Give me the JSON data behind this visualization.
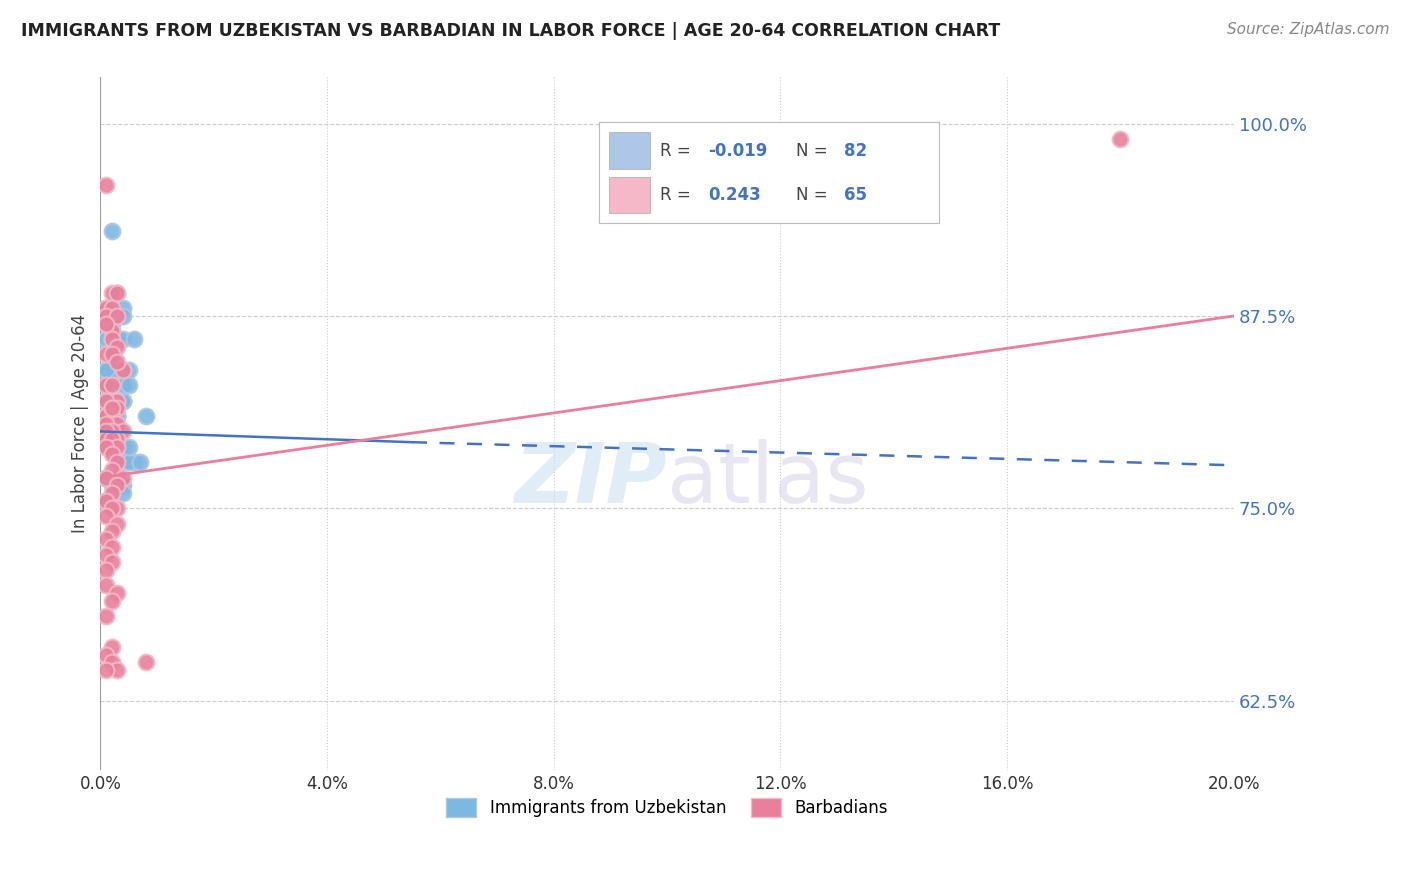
{
  "title": "IMMIGRANTS FROM UZBEKISTAN VS BARBADIAN IN LABOR FORCE | AGE 20-64 CORRELATION CHART",
  "source": "Source: ZipAtlas.com",
  "ylabel": "In Labor Force | Age 20-64",
  "legend_entries": [
    {
      "label": "Immigrants from Uzbekistan",
      "color": "#aec6e8",
      "dot_color": "#7db8e0",
      "R": "-0.019",
      "N": "82"
    },
    {
      "label": "Barbadians",
      "color": "#f4b8c8",
      "dot_color": "#e8809a",
      "R": "0.243",
      "N": "65"
    }
  ],
  "uzbekistan_scatter": {
    "color": "#7db8e0",
    "border": "#aec6e8",
    "points_x": [
      0.001,
      0.002,
      0.001,
      0.003,
      0.001,
      0.002,
      0.003,
      0.004,
      0.002,
      0.001,
      0.003,
      0.002,
      0.001,
      0.004,
      0.002,
      0.003,
      0.001,
      0.002,
      0.004,
      0.003,
      0.001,
      0.002,
      0.003,
      0.004,
      0.002,
      0.001,
      0.003,
      0.002,
      0.004,
      0.001,
      0.002,
      0.003,
      0.001,
      0.002,
      0.004,
      0.003,
      0.002,
      0.001,
      0.003,
      0.002,
      0.005,
      0.004,
      0.003,
      0.006,
      0.002,
      0.001,
      0.002,
      0.003,
      0.004,
      0.001,
      0.002,
      0.003,
      0.001,
      0.002,
      0.001,
      0.003,
      0.002,
      0.004,
      0.001,
      0.002,
      0.006,
      0.004,
      0.001,
      0.003,
      0.005,
      0.007,
      0.002,
      0.004,
      0.003,
      0.001,
      0.005,
      0.002,
      0.004,
      0.001,
      0.002,
      0.001,
      0.003,
      0.002,
      0.005,
      0.001,
      0.002,
      0.008
    ],
    "points_y": [
      0.82,
      0.93,
      0.88,
      0.89,
      0.86,
      0.87,
      0.86,
      0.88,
      0.85,
      0.84,
      0.86,
      0.85,
      0.84,
      0.875,
      0.84,
      0.86,
      0.83,
      0.84,
      0.86,
      0.84,
      0.82,
      0.84,
      0.82,
      0.82,
      0.81,
      0.8,
      0.8,
      0.8,
      0.79,
      0.79,
      0.82,
      0.81,
      0.8,
      0.81,
      0.82,
      0.82,
      0.81,
      0.83,
      0.8,
      0.82,
      0.84,
      0.84,
      0.81,
      0.86,
      0.82,
      0.83,
      0.8,
      0.8,
      0.79,
      0.81,
      0.8,
      0.79,
      0.81,
      0.79,
      0.77,
      0.8,
      0.77,
      0.83,
      0.77,
      0.77,
      0.78,
      0.78,
      0.77,
      0.77,
      0.78,
      0.78,
      0.77,
      0.765,
      0.768,
      0.755,
      0.79,
      0.77,
      0.76,
      0.755,
      0.765,
      0.81,
      0.81,
      0.82,
      0.83,
      0.84,
      0.8,
      0.81
    ]
  },
  "barbadian_scatter": {
    "color": "#e8809a",
    "border": "#f4b8c8",
    "points_x": [
      0.001,
      0.001,
      0.002,
      0.003,
      0.001,
      0.002,
      0.001,
      0.003,
      0.002,
      0.001,
      0.002,
      0.003,
      0.001,
      0.002,
      0.004,
      0.003,
      0.001,
      0.002,
      0.003,
      0.001,
      0.002,
      0.003,
      0.002,
      0.001,
      0.002,
      0.003,
      0.004,
      0.001,
      0.002,
      0.001,
      0.003,
      0.002,
      0.001,
      0.002,
      0.003,
      0.001,
      0.002,
      0.003,
      0.002,
      0.001,
      0.004,
      0.003,
      0.002,
      0.001,
      0.003,
      0.002,
      0.001,
      0.003,
      0.002,
      0.001,
      0.002,
      0.001,
      0.002,
      0.001,
      0.001,
      0.003,
      0.002,
      0.001,
      0.002,
      0.001,
      0.002,
      0.003,
      0.008,
      0.001,
      0.18
    ],
    "points_y": [
      0.96,
      0.87,
      0.89,
      0.89,
      0.88,
      0.88,
      0.875,
      0.875,
      0.865,
      0.87,
      0.86,
      0.855,
      0.85,
      0.85,
      0.84,
      0.845,
      0.83,
      0.83,
      0.82,
      0.82,
      0.815,
      0.815,
      0.81,
      0.81,
      0.815,
      0.805,
      0.8,
      0.805,
      0.8,
      0.8,
      0.795,
      0.795,
      0.795,
      0.795,
      0.79,
      0.79,
      0.785,
      0.78,
      0.775,
      0.77,
      0.77,
      0.765,
      0.76,
      0.755,
      0.75,
      0.75,
      0.745,
      0.74,
      0.735,
      0.73,
      0.725,
      0.72,
      0.715,
      0.71,
      0.7,
      0.695,
      0.69,
      0.68,
      0.66,
      0.655,
      0.65,
      0.645,
      0.65,
      0.645,
      0.99
    ]
  },
  "uzbekistan_trend_solid": {
    "x": [
      0.0,
      0.055
    ],
    "y": [
      0.8,
      0.793
    ],
    "color": "#4472c4",
    "style": "-"
  },
  "uzbekistan_trend_dashed": {
    "x": [
      0.055,
      0.2
    ],
    "y": [
      0.793,
      0.778
    ],
    "color": "#4472c4",
    "style": "--"
  },
  "barbadian_trend": {
    "x": [
      0.0,
      0.2
    ],
    "y": [
      0.77,
      0.875
    ],
    "color": "#e8809a",
    "style": "-"
  },
  "watermark_left": "ZIP",
  "watermark_right": "atlas",
  "xlim": [
    0.0,
    0.2
  ],
  "ylim": [
    0.58,
    1.03
  ],
  "yticks": [
    0.625,
    0.75,
    0.875,
    1.0
  ],
  "xticks": [
    0.0,
    0.04,
    0.08,
    0.12,
    0.16,
    0.2
  ],
  "background_color": "#ffffff",
  "grid_color": "#cccccc"
}
